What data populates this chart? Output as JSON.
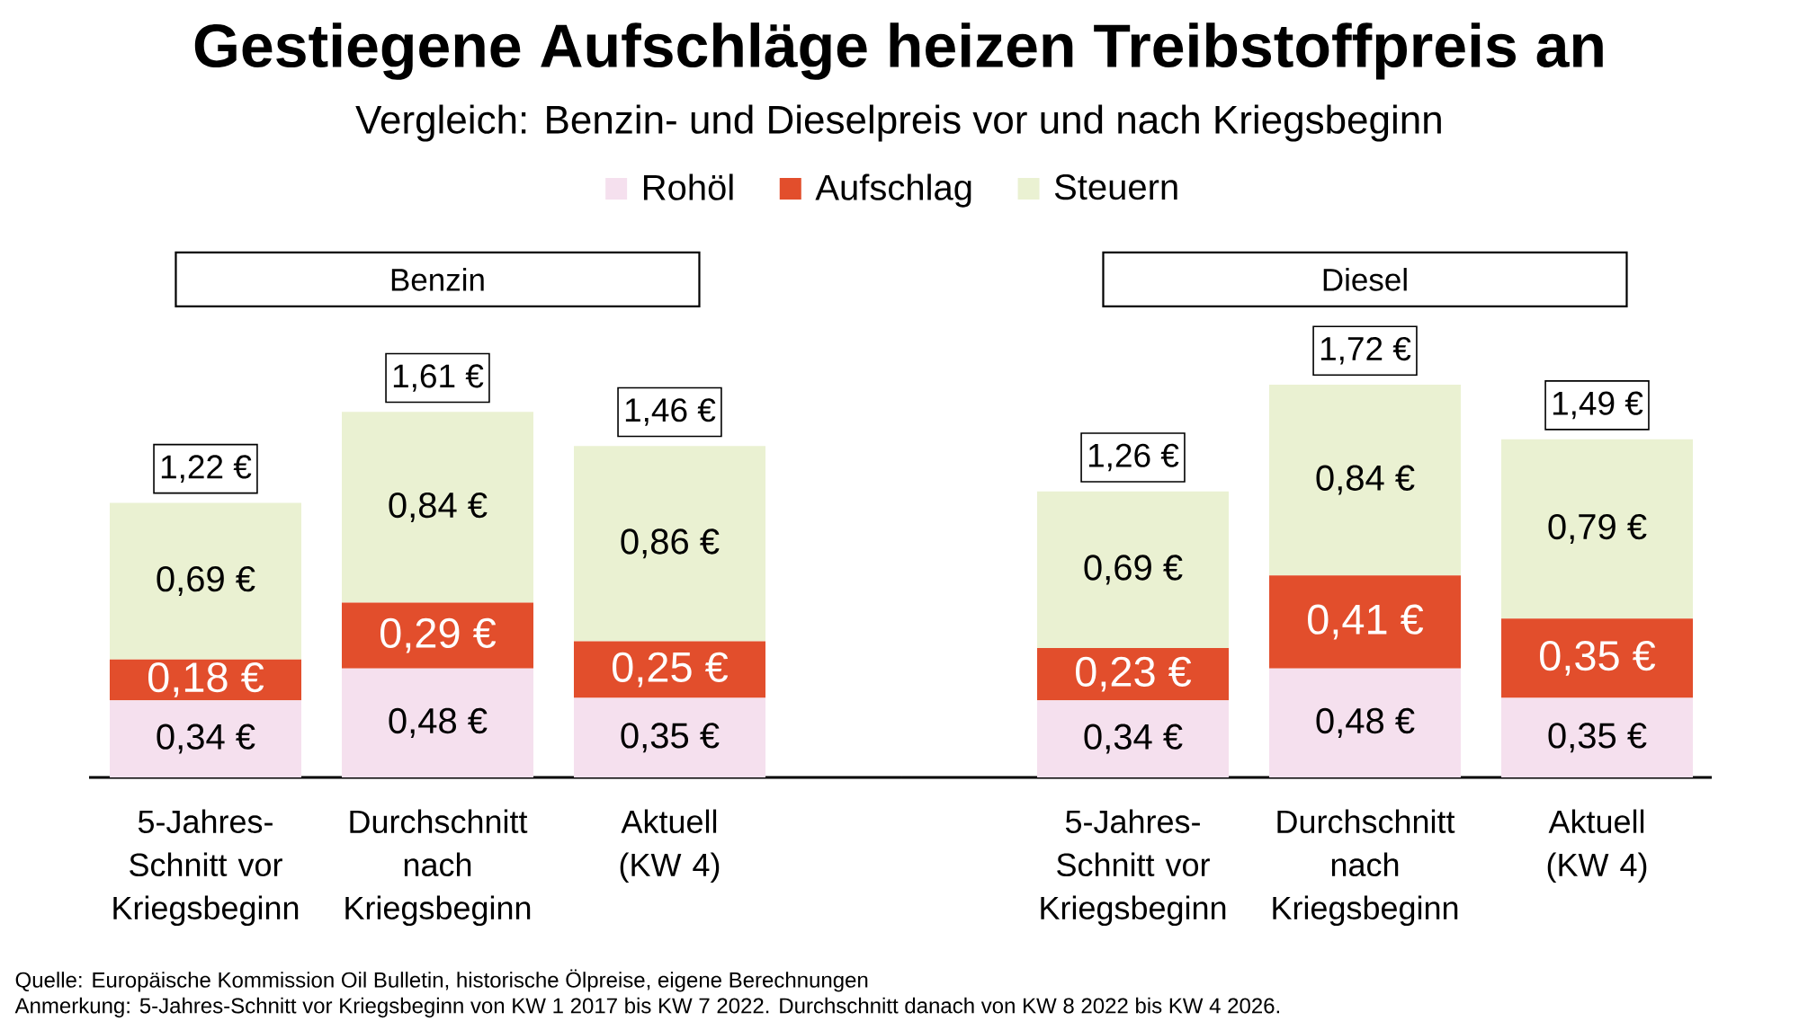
{
  "chart_data": [
    {
      "type": "other",
      "title": "Gestiegene Aufschläge heizen Treibstoffpreis an",
      "subtitle": "Vergleich: Benzin- und Dieselpreis vor und nach Kriegsbeginn",
      "annotations": [
        "Quelle: Europäische Kommission Oil Bulletin, historische Ölpreise, eigene Berechnungen",
        "Anmerkung: 5-Jahres-Schnitt vor Kriegsbeginn von KW 1 2017 bis KW 7 2022. Durchschnitt danach von KW 8 2022 bis KW 4 2026."
      ]
    },
    {
      "type": "bar",
      "stacked": true,
      "title": "Benzin",
      "categories": [
        "5-Jahres-Schnitt vor Kriegsbeginn",
        "Durchschnitt nach Kriegsbeginn",
        "Aktuell (KW 4)"
      ],
      "series": [
        {
          "name": "Rohöl",
          "color": "#f5e0ee",
          "values": [
            0.34,
            0.48,
            0.35
          ],
          "value_labels": [
            "0,34 €",
            "0,48 €",
            "0,35 €"
          ]
        },
        {
          "name": "Aufschlag",
          "color": "#e24e2c",
          "values": [
            0.18,
            0.29,
            0.25
          ],
          "value_labels": [
            "0,18 €",
            "0,29 €",
            "0,25 €"
          ]
        },
        {
          "name": "Steuern",
          "color": "#eaf1d2",
          "values": [
            0.69,
            0.84,
            0.86
          ],
          "value_labels": [
            "0,69 €",
            "0,84 €",
            "0,86 €"
          ]
        }
      ],
      "totals": [
        "1,22 €",
        "1,61 €",
        "1,46 €"
      ],
      "legend": "top"
    },
    {
      "type": "bar",
      "stacked": true,
      "title": "Diesel",
      "categories": [
        "5-Jahres-Schnitt vor Kriegsbeginn",
        "Durchschnitt nach Kriegsbeginn",
        "Aktuell (KW 4)"
      ],
      "series": [
        {
          "color": "#f5e0ee",
          "values": [
            0.34,
            0.48,
            0.35
          ],
          "value_labels": [
            "0,34 €",
            "0,48 €",
            "0,35 €"
          ]
        },
        {
          "color": "#e24e2c",
          "values": [
            0.23,
            0.41,
            0.35
          ],
          "value_labels": [
            "0,23 €",
            "0,41 €",
            "0,35 €"
          ]
        },
        {
          "color": "#eaf1d2",
          "values": [
            0.69,
            0.84,
            0.79
          ],
          "value_labels": [
            "0,69 €",
            "0,84 €",
            "0,79 €"
          ]
        }
      ],
      "totals": [
        "1,26 €",
        "1,72 €",
        "1,49 €"
      ]
    }
  ]
}
